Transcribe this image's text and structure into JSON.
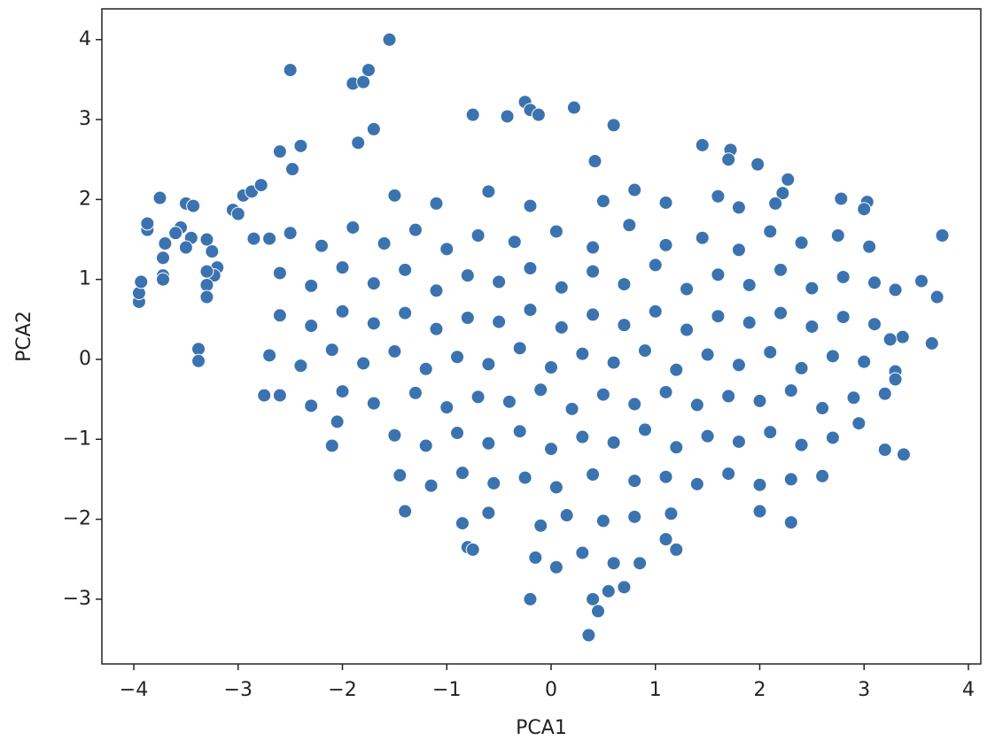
{
  "chart_data": {
    "type": "scatter",
    "x_label": "PCA1",
    "y_label": "PCA2",
    "xlim": [
      -4.306,
      4.119
    ],
    "ylim": [
      -3.81,
      4.385
    ],
    "xticks": [
      {
        "value": -4,
        "label": "−4"
      },
      {
        "value": -3,
        "label": "−3"
      },
      {
        "value": -2,
        "label": "−2"
      },
      {
        "value": -1,
        "label": "−1"
      },
      0,
      1,
      2,
      3,
      4
    ],
    "yticks": [
      {
        "value": -3,
        "label": "−3"
      },
      {
        "value": -2,
        "label": "−2"
      },
      {
        "value": -1,
        "label": "−1"
      },
      0,
      1,
      2,
      3,
      4
    ],
    "series": [
      {
        "color": "#3b73b0",
        "x": [
          -2.5,
          -2.2,
          -1.9,
          -1.6,
          -1.3,
          -1.0,
          -0.7,
          -0.35,
          0.05,
          0.4,
          0.75,
          1.1,
          1.45,
          1.8,
          2.1,
          2.4,
          2.75,
          3.05,
          -2.6,
          -2.3,
          -2.0,
          -1.7,
          -1.4,
          -1.1,
          -0.8,
          -0.5,
          -0.2,
          0.1,
          0.4,
          0.7,
          1.0,
          1.3,
          1.6,
          1.9,
          2.2,
          2.5,
          2.8,
          3.1,
          3.3,
          -2.6,
          -2.3,
          -2.0,
          -1.7,
          -1.4,
          -1.1,
          -0.8,
          -0.5,
          -0.2,
          0.1,
          0.4,
          0.7,
          1.0,
          1.3,
          1.6,
          1.9,
          2.2,
          2.5,
          2.8,
          3.1,
          -2.7,
          -2.4,
          -2.1,
          -1.8,
          -1.5,
          -1.2,
          -0.9,
          -0.6,
          -0.3,
          0.0,
          0.3,
          0.6,
          0.9,
          1.2,
          1.5,
          1.8,
          2.1,
          2.4,
          2.7,
          3.0,
          3.3,
          -2.6,
          -2.3,
          -2.0,
          -1.7,
          -1.3,
          -1.0,
          -0.7,
          -0.4,
          -0.1,
          0.2,
          0.5,
          0.8,
          1.1,
          1.4,
          1.7,
          2.0,
          2.3,
          2.6,
          2.9,
          3.2,
          -1.5,
          -1.2,
          -0.9,
          -0.6,
          -0.3,
          0.0,
          0.3,
          0.6,
          0.9,
          1.2,
          1.5,
          1.8,
          2.1,
          2.4,
          2.7,
          -1.45,
          -1.15,
          -0.85,
          -0.55,
          -0.25,
          0.05,
          0.4,
          0.8,
          1.1,
          1.4,
          1.7,
          2.0,
          2.3,
          2.6,
          -1.5,
          -1.1,
          -0.6,
          -0.2,
          0.5,
          0.8,
          1.1,
          1.6,
          1.8,
          -0.85,
          -0.6,
          -0.1,
          0.15,
          0.5,
          0.8,
          -0.15,
          0.05,
          0.3,
          0.6,
          -1.55,
          -2.5,
          -1.9,
          -1.8,
          -1.75,
          -1.7,
          -1.85,
          -2.6,
          -2.4,
          -2.48,
          -0.75,
          -0.25,
          -0.2,
          -0.12,
          0.22,
          0.6,
          -0.42,
          0.42,
          1.45,
          1.72,
          1.7,
          1.98,
          2.27,
          2.22,
          2.15,
          2.78,
          3.03,
          3.0,
          3.75,
          3.55,
          3.7,
          3.65,
          3.37,
          3.25,
          3.3,
          3.38,
          3.2,
          2.95,
          2.3,
          2.0,
          -3.95,
          -3.95,
          -3.93,
          -3.87,
          -3.87,
          -3.75,
          -3.7,
          -3.72,
          -3.72,
          -3.72,
          -3.55,
          -3.5,
          -3.43,
          -3.45,
          -3.6,
          -3.5,
          -3.3,
          -3.25,
          -3.2,
          -3.23,
          -3.3,
          -3.3,
          -3.3,
          -3.38,
          -3.38,
          -3.05,
          -2.95,
          -2.87,
          -2.78,
          -3.0,
          -2.85,
          -2.7,
          -2.75,
          -2.1,
          -2.05,
          0.36,
          -0.2,
          0.7,
          0.55,
          0.4,
          0.45,
          0.85,
          1.1,
          1.2,
          1.15,
          -0.8,
          -0.75,
          -1.4
        ],
        "values": [
          1.58,
          1.42,
          1.65,
          1.45,
          1.62,
          1.38,
          1.55,
          1.47,
          1.6,
          1.4,
          1.68,
          1.43,
          1.52,
          1.37,
          1.6,
          1.46,
          1.55,
          1.41,
          1.08,
          0.92,
          1.15,
          0.95,
          1.12,
          0.86,
          1.05,
          0.97,
          1.14,
          0.9,
          1.1,
          0.94,
          1.18,
          0.88,
          1.06,
          0.93,
          1.12,
          0.89,
          1.03,
          0.96,
          0.87,
          0.55,
          0.42,
          0.6,
          0.45,
          0.58,
          0.38,
          0.52,
          0.47,
          0.62,
          0.4,
          0.56,
          0.43,
          0.6,
          0.37,
          0.54,
          0.46,
          0.58,
          0.41,
          0.53,
          0.44,
          0.05,
          -0.08,
          0.12,
          -0.05,
          0.1,
          -0.12,
          0.03,
          -0.06,
          0.14,
          -0.1,
          0.07,
          -0.04,
          0.11,
          -0.13,
          0.06,
          -0.07,
          0.09,
          -0.11,
          0.04,
          -0.03,
          -0.15,
          -0.45,
          -0.58,
          -0.4,
          -0.55,
          -0.42,
          -0.6,
          -0.47,
          -0.53,
          -0.38,
          -0.62,
          -0.44,
          -0.56,
          -0.41,
          -0.57,
          -0.46,
          -0.52,
          -0.39,
          -0.61,
          -0.48,
          -0.43,
          -0.95,
          -1.08,
          -0.92,
          -1.05,
          -0.9,
          -1.12,
          -0.97,
          -1.04,
          -0.88,
          -1.1,
          -0.96,
          -1.03,
          -0.91,
          -1.07,
          -0.98,
          -1.45,
          -1.58,
          -1.42,
          -1.55,
          -1.48,
          -1.6,
          -1.44,
          -1.52,
          -1.47,
          -1.56,
          -1.43,
          -1.57,
          -1.5,
          -1.46,
          2.05,
          1.95,
          2.1,
          1.92,
          1.98,
          2.12,
          1.96,
          2.04,
          1.9,
          -2.05,
          -1.92,
          -2.08,
          -1.95,
          -2.02,
          -1.97,
          -2.48,
          -2.6,
          -2.42,
          -2.55,
          4.0,
          3.62,
          3.45,
          3.47,
          3.62,
          2.88,
          2.71,
          2.6,
          2.67,
          2.38,
          3.06,
          3.22,
          3.12,
          3.06,
          3.15,
          2.93,
          3.04,
          2.48,
          2.68,
          2.62,
          2.5,
          2.44,
          2.25,
          2.08,
          1.95,
          2.01,
          1.97,
          1.88,
          1.55,
          0.98,
          0.78,
          0.2,
          0.28,
          0.25,
          -0.25,
          -1.19,
          -1.13,
          -0.8,
          -2.04,
          -1.9,
          0.72,
          0.83,
          0.97,
          1.62,
          1.7,
          2.02,
          1.45,
          1.27,
          1.05,
          1.0,
          1.65,
          1.95,
          1.92,
          1.52,
          1.58,
          1.4,
          1.5,
          1.35,
          1.15,
          1.05,
          1.1,
          0.93,
          0.78,
          0.13,
          -0.02,
          1.87,
          2.05,
          2.1,
          2.18,
          1.82,
          1.51,
          1.51,
          -0.45,
          -1.08,
          -0.78,
          -3.45,
          -3.0,
          -2.85,
          -2.9,
          -3.0,
          -3.15,
          -2.55,
          -2.25,
          -2.38,
          -1.93,
          -2.35,
          -2.38,
          -1.9
        ]
      }
    ]
  }
}
